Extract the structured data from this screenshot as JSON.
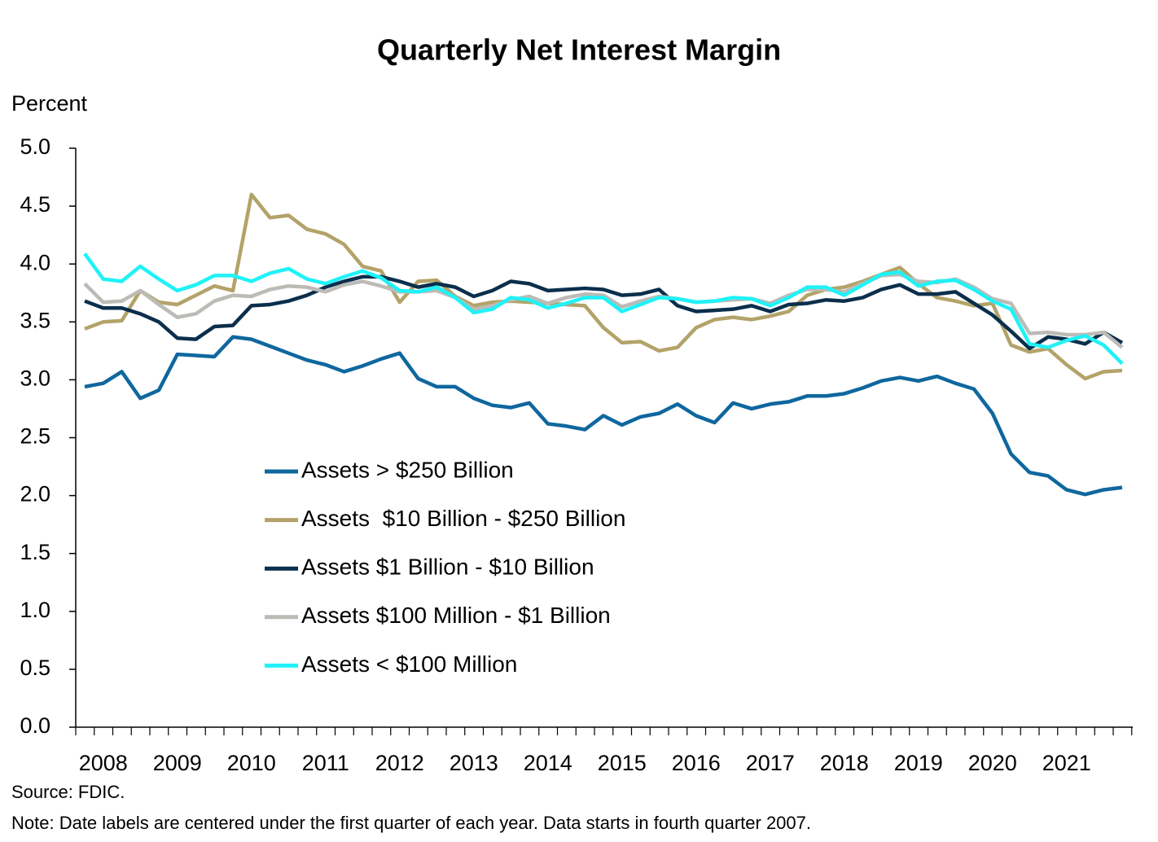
{
  "chart_data": {
    "type": "line",
    "title": "Quarterly Net Interest Margin",
    "y_label": "Percent",
    "source": "Source: FDIC.",
    "note": "Note: Date labels are centered under the first quarter of each year. Data starts in fourth quarter 2007.",
    "categories": [
      null,
      "2008",
      null,
      null,
      null,
      "2009",
      null,
      null,
      null,
      "2010",
      null,
      null,
      null,
      "2011",
      null,
      null,
      null,
      "2012",
      null,
      null,
      null,
      "2013",
      null,
      null,
      null,
      "2014",
      null,
      null,
      null,
      "2015",
      null,
      null,
      null,
      "2016",
      null,
      null,
      null,
      "2017",
      null,
      null,
      null,
      "2018",
      null,
      null,
      null,
      "2019",
      null,
      null,
      null,
      "2020",
      null,
      null,
      null,
      "2021",
      null,
      null,
      null
    ],
    "ylim": [
      0,
      5
    ],
    "yticks": [
      {
        "value": 0,
        "label": "0.0"
      },
      0.5,
      {
        "value": 1,
        "label": "1.0"
      },
      1.5,
      {
        "value": 2,
        "label": "2.0"
      },
      2.5,
      {
        "value": 3,
        "label": "3.0"
      },
      3.5,
      {
        "value": 4,
        "label": "4.0"
      },
      4.5,
      {
        "value": 5,
        "label": "5.0"
      }
    ],
    "grid": false,
    "series": [
      {
        "name": "Assets > $250 Billion",
        "color": "#0f679e",
        "values": [
          2.94,
          2.97,
          3.07,
          2.84,
          2.91,
          3.22,
          3.21,
          3.2,
          3.37,
          3.35,
          3.29,
          3.23,
          3.17,
          3.13,
          3.07,
          3.12,
          3.18,
          3.23,
          3.01,
          2.94,
          2.94,
          2.84,
          2.78,
          2.76,
          2.8,
          2.62,
          2.6,
          2.57,
          2.69,
          2.61,
          2.68,
          2.71,
          2.79,
          2.69,
          2.63,
          2.8,
          2.75,
          2.79,
          2.81,
          2.86,
          2.86,
          2.88,
          2.93,
          2.99,
          3.02,
          2.99,
          3.03,
          2.97,
          2.92,
          2.71,
          2.36,
          2.2,
          2.17,
          2.05,
          2.01,
          2.05,
          2.07
        ]
      },
      {
        "name": "Assets  $10 Billion - $250 Billion",
        "color": "#b3a369",
        "values": [
          3.44,
          3.5,
          3.51,
          3.77,
          3.67,
          3.65,
          3.73,
          3.81,
          3.77,
          4.6,
          4.4,
          4.42,
          4.3,
          4.26,
          4.17,
          3.98,
          3.94,
          3.67,
          3.85,
          3.86,
          3.72,
          3.64,
          3.67,
          3.68,
          3.67,
          3.66,
          3.65,
          3.64,
          3.45,
          3.32,
          3.33,
          3.25,
          3.28,
          3.45,
          3.52,
          3.54,
          3.52,
          3.55,
          3.59,
          3.73,
          3.78,
          3.8,
          3.85,
          3.91,
          3.97,
          3.83,
          3.71,
          3.68,
          3.64,
          3.66,
          3.3,
          3.24,
          3.27,
          3.13,
          3.01,
          3.07,
          3.08
        ]
      },
      {
        "name": "Assets $1 Billion - $10 Billion",
        "color": "#0b2f4c",
        "values": [
          3.68,
          3.62,
          3.62,
          3.57,
          3.5,
          3.36,
          3.35,
          3.46,
          3.47,
          3.64,
          3.65,
          3.68,
          3.73,
          3.8,
          3.85,
          3.89,
          3.89,
          3.85,
          3.8,
          3.83,
          3.8,
          3.72,
          3.77,
          3.85,
          3.83,
          3.77,
          3.78,
          3.79,
          3.78,
          3.73,
          3.74,
          3.78,
          3.64,
          3.59,
          3.6,
          3.61,
          3.64,
          3.59,
          3.65,
          3.66,
          3.69,
          3.68,
          3.71,
          3.78,
          3.82,
          3.74,
          3.74,
          3.76,
          3.66,
          3.56,
          3.42,
          3.27,
          3.37,
          3.35,
          3.31,
          3.41,
          3.32
        ]
      },
      {
        "name": "Assets $100 Million - $1 Billion",
        "color": "#bdbbb6",
        "values": [
          3.83,
          3.67,
          3.68,
          3.77,
          3.65,
          3.54,
          3.57,
          3.68,
          3.73,
          3.72,
          3.78,
          3.81,
          3.8,
          3.76,
          3.82,
          3.85,
          3.81,
          3.76,
          3.76,
          3.77,
          3.71,
          3.61,
          3.64,
          3.69,
          3.72,
          3.66,
          3.71,
          3.74,
          3.73,
          3.63,
          3.68,
          3.72,
          3.7,
          3.67,
          3.68,
          3.69,
          3.7,
          3.66,
          3.73,
          3.78,
          3.78,
          3.76,
          3.83,
          3.9,
          3.91,
          3.85,
          3.84,
          3.87,
          3.8,
          3.7,
          3.66,
          3.4,
          3.41,
          3.39,
          3.39,
          3.41,
          3.28
        ]
      },
      {
        "name": "Assets < $100 Million",
        "color": "#1ff2f7",
        "values": [
          4.09,
          3.87,
          3.85,
          3.98,
          3.87,
          3.77,
          3.82,
          3.9,
          3.9,
          3.85,
          3.92,
          3.96,
          3.87,
          3.83,
          3.89,
          3.94,
          3.88,
          3.77,
          3.76,
          3.8,
          3.71,
          3.58,
          3.61,
          3.71,
          3.69,
          3.62,
          3.66,
          3.71,
          3.71,
          3.59,
          3.65,
          3.71,
          3.7,
          3.67,
          3.68,
          3.71,
          3.7,
          3.64,
          3.71,
          3.8,
          3.8,
          3.73,
          3.82,
          3.91,
          3.93,
          3.81,
          3.85,
          3.86,
          3.78,
          3.68,
          3.61,
          3.31,
          3.28,
          3.34,
          3.38,
          3.3,
          3.14
        ]
      }
    ]
  }
}
